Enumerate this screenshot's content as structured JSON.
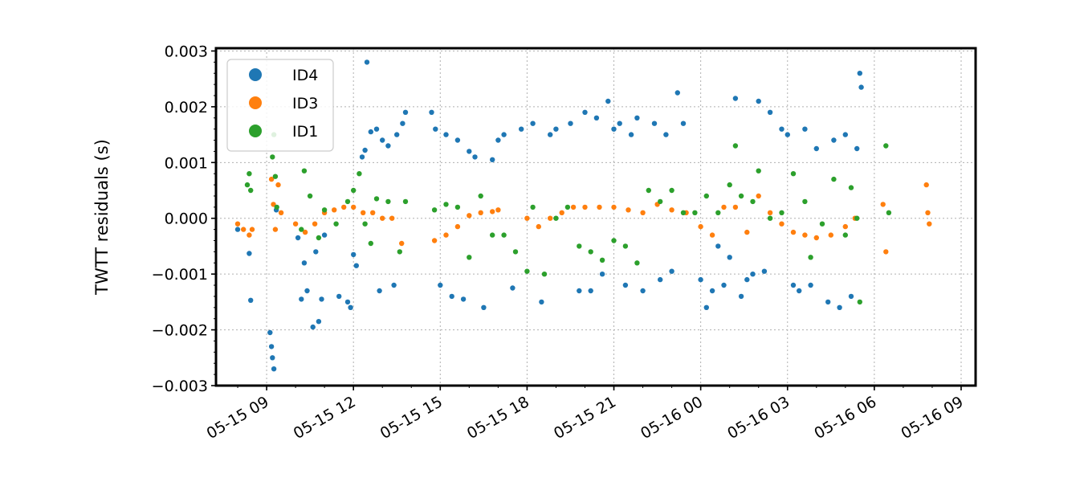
{
  "chart_data": {
    "type": "scatter",
    "ylabel": "TWTT residuals (s)",
    "ylim": [
      -0.003,
      0.00305
    ],
    "xlim": [
      "2021-05-15T07:15",
      "2021-05-16T09:30"
    ],
    "x_tick_labels": [
      "05-15 09",
      "05-15 12",
      "05-15 15",
      "05-15 18",
      "05-15 21",
      "05-16 00",
      "05-16 03",
      "05-16 06",
      "05-16 09"
    ],
    "y_tick_labels": [
      "0.003",
      "0.002",
      "0.001",
      "0.000",
      "−0.001",
      "−0.002",
      "−0.003"
    ],
    "grid": true,
    "legend_position": "upper-left",
    "series": [
      {
        "name": "ID4",
        "color": "#1f77b4",
        "points": [
          [
            "2021-05-15T08:00",
            -0.0002
          ],
          [
            "2021-05-15T08:24",
            -0.00063
          ],
          [
            "2021-05-15T08:27",
            -0.00147
          ],
          [
            "2021-05-15T09:07",
            -0.00205
          ],
          [
            "2021-05-15T09:10",
            -0.0023
          ],
          [
            "2021-05-15T09:12",
            -0.0025
          ],
          [
            "2021-05-15T09:15",
            -0.0027
          ],
          [
            "2021-05-15T09:20",
            0.00015
          ],
          [
            "2021-05-15T10:05",
            -0.00035
          ],
          [
            "2021-05-15T10:12",
            -0.00145
          ],
          [
            "2021-05-15T10:18",
            -0.0008
          ],
          [
            "2021-05-15T10:24",
            -0.0013
          ],
          [
            "2021-05-15T10:36",
            -0.00195
          ],
          [
            "2021-05-15T10:42",
            -0.0006
          ],
          [
            "2021-05-15T10:48",
            -0.00185
          ],
          [
            "2021-05-15T10:54",
            -0.00145
          ],
          [
            "2021-05-15T11:00",
            -0.0003
          ],
          [
            "2021-05-15T11:30",
            -0.0014
          ],
          [
            "2021-05-15T11:48",
            -0.0015
          ],
          [
            "2021-05-15T11:54",
            -0.0016
          ],
          [
            "2021-05-15T12:00",
            -0.00065
          ],
          [
            "2021-05-15T12:06",
            -0.00085
          ],
          [
            "2021-05-15T12:18",
            0.0011
          ],
          [
            "2021-05-15T12:24",
            0.00122
          ],
          [
            "2021-05-15T12:28",
            0.0028
          ],
          [
            "2021-05-15T12:36",
            0.00155
          ],
          [
            "2021-05-15T12:48",
            0.0016
          ],
          [
            "2021-05-15T12:54",
            -0.0013
          ],
          [
            "2021-05-15T13:00",
            0.0014
          ],
          [
            "2021-05-15T13:12",
            0.0013
          ],
          [
            "2021-05-15T13:24",
            -0.0012
          ],
          [
            "2021-05-15T13:30",
            0.0015
          ],
          [
            "2021-05-15T13:42",
            0.0017
          ],
          [
            "2021-05-15T13:48",
            0.0019
          ],
          [
            "2021-05-15T14:42",
            0.0019
          ],
          [
            "2021-05-15T14:50",
            0.0016
          ],
          [
            "2021-05-15T15:00",
            -0.0012
          ],
          [
            "2021-05-15T15:12",
            0.0015
          ],
          [
            "2021-05-15T15:24",
            -0.0014
          ],
          [
            "2021-05-15T15:36",
            0.0014
          ],
          [
            "2021-05-15T15:48",
            -0.00145
          ],
          [
            "2021-05-15T16:00",
            0.0012
          ],
          [
            "2021-05-15T16:12",
            0.0011
          ],
          [
            "2021-05-15T16:30",
            -0.0016
          ],
          [
            "2021-05-15T16:48",
            0.00105
          ],
          [
            "2021-05-15T17:00",
            0.0014
          ],
          [
            "2021-05-15T17:12",
            0.0015
          ],
          [
            "2021-05-15T17:30",
            -0.00125
          ],
          [
            "2021-05-15T17:48",
            0.0016
          ],
          [
            "2021-05-15T18:12",
            0.0017
          ],
          [
            "2021-05-15T18:30",
            -0.0015
          ],
          [
            "2021-05-15T18:48",
            0.0015
          ],
          [
            "2021-05-15T19:00",
            0.0016
          ],
          [
            "2021-05-15T19:30",
            0.0017
          ],
          [
            "2021-05-15T19:48",
            -0.0013
          ],
          [
            "2021-05-15T20:00",
            0.0019
          ],
          [
            "2021-05-15T20:12",
            -0.0013
          ],
          [
            "2021-05-15T20:24",
            0.0018
          ],
          [
            "2021-05-15T20:36",
            -0.001
          ],
          [
            "2021-05-15T20:48",
            0.0021
          ],
          [
            "2021-05-15T21:00",
            0.0016
          ],
          [
            "2021-05-15T21:12",
            0.0017
          ],
          [
            "2021-05-15T21:24",
            -0.0012
          ],
          [
            "2021-05-15T21:36",
            0.0015
          ],
          [
            "2021-05-15T21:48",
            0.0018
          ],
          [
            "2021-05-15T22:00",
            -0.0013
          ],
          [
            "2021-05-15T22:24",
            0.0017
          ],
          [
            "2021-05-15T22:36",
            -0.0011
          ],
          [
            "2021-05-15T22:48",
            0.0015
          ],
          [
            "2021-05-15T23:00",
            -0.00095
          ],
          [
            "2021-05-15T23:12",
            0.00225
          ],
          [
            "2021-05-15T23:24",
            0.0017
          ],
          [
            "2021-05-16T00:00",
            -0.0011
          ],
          [
            "2021-05-16T00:12",
            -0.0016
          ],
          [
            "2021-05-16T00:24",
            -0.0013
          ],
          [
            "2021-05-16T00:36",
            -0.0005
          ],
          [
            "2021-05-16T00:48",
            -0.0012
          ],
          [
            "2021-05-16T01:00",
            -0.0007
          ],
          [
            "2021-05-16T01:12",
            0.00215
          ],
          [
            "2021-05-16T01:24",
            -0.0014
          ],
          [
            "2021-05-16T01:36",
            -0.0011
          ],
          [
            "2021-05-16T01:48",
            -0.001
          ],
          [
            "2021-05-16T02:00",
            0.0021
          ],
          [
            "2021-05-16T02:12",
            -0.00095
          ],
          [
            "2021-05-16T02:24",
            0.0019
          ],
          [
            "2021-05-16T02:48",
            0.0016
          ],
          [
            "2021-05-16T03:00",
            0.0015
          ],
          [
            "2021-05-16T03:12",
            -0.0012
          ],
          [
            "2021-05-16T03:24",
            -0.0013
          ],
          [
            "2021-05-16T03:36",
            0.0016
          ],
          [
            "2021-05-16T03:48",
            -0.0012
          ],
          [
            "2021-05-16T04:00",
            0.00125
          ],
          [
            "2021-05-16T04:24",
            -0.0015
          ],
          [
            "2021-05-16T04:36",
            0.0014
          ],
          [
            "2021-05-16T04:48",
            -0.0016
          ],
          [
            "2021-05-16T05:00",
            0.0015
          ],
          [
            "2021-05-16T05:12",
            -0.0014
          ],
          [
            "2021-05-16T05:24",
            0.00125
          ],
          [
            "2021-05-16T05:30",
            0.0026
          ],
          [
            "2021-05-16T05:33",
            0.00235
          ]
        ]
      },
      {
        "name": "ID3",
        "color": "#ff7f0e",
        "points": [
          [
            "2021-05-15T08:00",
            -0.0001
          ],
          [
            "2021-05-15T08:12",
            -0.0002
          ],
          [
            "2021-05-15T08:24",
            -0.0003
          ],
          [
            "2021-05-15T08:30",
            -0.0002
          ],
          [
            "2021-05-15T09:10",
            0.0007
          ],
          [
            "2021-05-15T09:14",
            0.00025
          ],
          [
            "2021-05-15T09:18",
            -0.0002
          ],
          [
            "2021-05-15T09:24",
            0.0006
          ],
          [
            "2021-05-15T09:30",
            0.0001
          ],
          [
            "2021-05-15T10:00",
            -0.0001
          ],
          [
            "2021-05-15T10:20",
            -0.00025
          ],
          [
            "2021-05-15T10:40",
            -0.0001
          ],
          [
            "2021-05-15T11:00",
            0.0001
          ],
          [
            "2021-05-15T11:20",
            0.00015
          ],
          [
            "2021-05-15T11:40",
            0.0002
          ],
          [
            "2021-05-15T12:00",
            0.0002
          ],
          [
            "2021-05-15T12:20",
            0.0001
          ],
          [
            "2021-05-15T12:40",
            0.0001
          ],
          [
            "2021-05-15T13:00",
            0.0
          ],
          [
            "2021-05-15T13:20",
            0.0
          ],
          [
            "2021-05-15T13:40",
            -0.00045
          ],
          [
            "2021-05-15T14:48",
            -0.0004
          ],
          [
            "2021-05-15T15:12",
            -0.0003
          ],
          [
            "2021-05-15T15:36",
            -0.00015
          ],
          [
            "2021-05-15T16:00",
            5e-05
          ],
          [
            "2021-05-15T16:24",
            0.0001
          ],
          [
            "2021-05-15T16:48",
            0.00012
          ],
          [
            "2021-05-15T17:00",
            0.00015
          ],
          [
            "2021-05-15T18:00",
            0.0
          ],
          [
            "2021-05-15T18:24",
            -0.00015
          ],
          [
            "2021-05-15T18:48",
            0.0
          ],
          [
            "2021-05-15T19:12",
            0.0001
          ],
          [
            "2021-05-15T19:36",
            0.0002
          ],
          [
            "2021-05-15T20:00",
            0.0002
          ],
          [
            "2021-05-15T20:30",
            0.0002
          ],
          [
            "2021-05-15T21:00",
            0.0002
          ],
          [
            "2021-05-15T21:30",
            0.00015
          ],
          [
            "2021-05-15T22:00",
            0.0001
          ],
          [
            "2021-05-15T22:30",
            0.00025
          ],
          [
            "2021-05-15T23:00",
            0.00015
          ],
          [
            "2021-05-15T23:30",
            0.0001
          ],
          [
            "2021-05-16T00:00",
            -0.00015
          ],
          [
            "2021-05-16T00:24",
            -0.0003
          ],
          [
            "2021-05-16T00:48",
            0.0002
          ],
          [
            "2021-05-16T01:12",
            0.0002
          ],
          [
            "2021-05-16T01:36",
            -0.00025
          ],
          [
            "2021-05-16T02:00",
            0.0004
          ],
          [
            "2021-05-16T02:24",
            0.0001
          ],
          [
            "2021-05-16T02:48",
            -0.0001
          ],
          [
            "2021-05-16T03:12",
            -0.00025
          ],
          [
            "2021-05-16T03:36",
            -0.0003
          ],
          [
            "2021-05-16T04:00",
            -0.00035
          ],
          [
            "2021-05-16T04:30",
            -0.0003
          ],
          [
            "2021-05-16T05:00",
            -0.00015
          ],
          [
            "2021-05-16T05:20",
            0.0
          ],
          [
            "2021-05-16T06:18",
            0.00025
          ],
          [
            "2021-05-16T06:24",
            -0.0006
          ],
          [
            "2021-05-16T07:48",
            0.0006
          ],
          [
            "2021-05-16T07:51",
            0.0001
          ],
          [
            "2021-05-16T07:54",
            -0.0001
          ]
        ]
      },
      {
        "name": "ID1",
        "color": "#2ca02c",
        "points": [
          [
            "2021-05-15T08:20",
            0.0006
          ],
          [
            "2021-05-15T08:24",
            0.0008
          ],
          [
            "2021-05-15T08:27",
            0.0005
          ],
          [
            "2021-05-15T09:12",
            0.0011
          ],
          [
            "2021-05-15T09:15",
            0.0015
          ],
          [
            "2021-05-15T09:18",
            0.00075
          ],
          [
            "2021-05-15T09:21",
            0.0002
          ],
          [
            "2021-05-15T10:12",
            -0.0002
          ],
          [
            "2021-05-15T10:18",
            0.00085
          ],
          [
            "2021-05-15T10:30",
            0.0004
          ],
          [
            "2021-05-15T10:48",
            -0.00035
          ],
          [
            "2021-05-15T11:00",
            0.00015
          ],
          [
            "2021-05-15T11:24",
            -0.0001
          ],
          [
            "2021-05-15T11:48",
            0.0003
          ],
          [
            "2021-05-15T12:00",
            0.0005
          ],
          [
            "2021-05-15T12:12",
            0.0008
          ],
          [
            "2021-05-15T12:24",
            -0.0001
          ],
          [
            "2021-05-15T12:36",
            -0.00045
          ],
          [
            "2021-05-15T12:48",
            0.00035
          ],
          [
            "2021-05-15T13:12",
            0.0003
          ],
          [
            "2021-05-15T13:36",
            -0.0006
          ],
          [
            "2021-05-15T13:48",
            0.0003
          ],
          [
            "2021-05-15T14:48",
            0.00015
          ],
          [
            "2021-05-15T15:12",
            0.00025
          ],
          [
            "2021-05-15T15:36",
            0.0002
          ],
          [
            "2021-05-15T16:00",
            -0.0007
          ],
          [
            "2021-05-15T16:24",
            0.0004
          ],
          [
            "2021-05-15T16:48",
            -0.0003
          ],
          [
            "2021-05-15T17:12",
            -0.0003
          ],
          [
            "2021-05-15T17:36",
            -0.0006
          ],
          [
            "2021-05-15T18:00",
            -0.00095
          ],
          [
            "2021-05-15T18:12",
            0.0002
          ],
          [
            "2021-05-15T18:36",
            -0.001
          ],
          [
            "2021-05-15T19:00",
            0.0
          ],
          [
            "2021-05-15T19:24",
            0.0002
          ],
          [
            "2021-05-15T19:48",
            -0.0005
          ],
          [
            "2021-05-15T20:12",
            -0.0006
          ],
          [
            "2021-05-15T20:36",
            -0.00075
          ],
          [
            "2021-05-15T21:00",
            -0.0004
          ],
          [
            "2021-05-15T21:24",
            -0.0005
          ],
          [
            "2021-05-15T21:48",
            -0.0008
          ],
          [
            "2021-05-15T22:12",
            0.0005
          ],
          [
            "2021-05-15T22:36",
            0.0003
          ],
          [
            "2021-05-15T23:00",
            0.0005
          ],
          [
            "2021-05-15T23:24",
            0.0001
          ],
          [
            "2021-05-15T23:48",
            0.0001
          ],
          [
            "2021-05-16T00:12",
            0.0004
          ],
          [
            "2021-05-16T00:36",
            0.0001
          ],
          [
            "2021-05-16T01:00",
            0.0006
          ],
          [
            "2021-05-16T01:12",
            0.0013
          ],
          [
            "2021-05-16T01:24",
            0.0004
          ],
          [
            "2021-05-16T01:48",
            0.0003
          ],
          [
            "2021-05-16T02:00",
            0.00085
          ],
          [
            "2021-05-16T02:24",
            0.0
          ],
          [
            "2021-05-16T02:48",
            0.0001
          ],
          [
            "2021-05-16T03:12",
            0.0008
          ],
          [
            "2021-05-16T03:36",
            0.0003
          ],
          [
            "2021-05-16T03:48",
            -0.0007
          ],
          [
            "2021-05-16T04:12",
            -0.0001
          ],
          [
            "2021-05-16T04:36",
            0.0007
          ],
          [
            "2021-05-16T05:00",
            -0.0003
          ],
          [
            "2021-05-16T05:12",
            0.00055
          ],
          [
            "2021-05-16T05:24",
            0.0
          ],
          [
            "2021-05-16T05:30",
            -0.0015
          ],
          [
            "2021-05-16T06:24",
            0.0013
          ],
          [
            "2021-05-16T06:30",
            0.0001
          ]
        ]
      }
    ]
  }
}
